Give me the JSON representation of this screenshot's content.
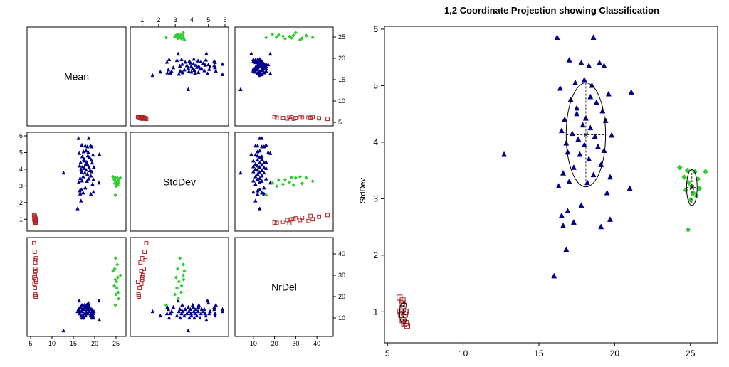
{
  "chart_data": [
    {
      "type": "scatter",
      "kind": "scatterplot-matrix",
      "variables": [
        "Mean",
        "StdDev",
        "NrDel"
      ],
      "ticks": {
        "StdDev": [
          "1",
          "2",
          "3",
          "4",
          "5",
          "6"
        ],
        "Mean": [
          "5",
          "10",
          "15",
          "20",
          "25"
        ],
        "NrDel": [
          "10",
          "20",
          "30",
          "40"
        ]
      },
      "ranges": {
        "Mean": [
          5.0,
          26.5
        ],
        "StdDev": [
          0.5,
          6.0
        ],
        "NrDel": [
          3,
          46
        ]
      },
      "colors": {
        "class1": "#b22222",
        "class2": "#00008b",
        "class3": "#32cd32"
      },
      "markers": {
        "class1": "open-square",
        "class2": "filled-triangle",
        "class3": "filled-diamond"
      },
      "points": {
        "class1": [
          [
            5.8,
            1.25,
            45
          ],
          [
            6.0,
            1.2,
            37
          ],
          [
            6.1,
            1.1,
            33
          ],
          [
            6.0,
            1.05,
            30
          ],
          [
            6.2,
            1.0,
            28
          ],
          [
            5.9,
            0.95,
            26
          ],
          [
            6.1,
            0.9,
            36
          ],
          [
            6.0,
            0.85,
            24
          ],
          [
            6.2,
            0.8,
            20
          ],
          [
            6.3,
            0.75,
            27
          ],
          [
            5.95,
            1.15,
            41
          ],
          [
            6.15,
            0.95,
            32
          ],
          [
            6.25,
            1.0,
            38
          ],
          [
            5.85,
            1.0,
            29
          ],
          [
            6.1,
            0.78,
            21
          ]
        ],
        "class2": [
          [
            16.2,
            5.85,
            14
          ],
          [
            18.6,
            5.85,
            13
          ],
          [
            17.0,
            5.45,
            16
          ],
          [
            17.8,
            5.4,
            12
          ],
          [
            18.3,
            5.35,
            15
          ],
          [
            19.0,
            5.4,
            11
          ],
          [
            19.3,
            5.35,
            14
          ],
          [
            16.4,
            4.95,
            18
          ],
          [
            17.4,
            5.05,
            12
          ],
          [
            18.0,
            5.1,
            13
          ],
          [
            18.5,
            5.0,
            17
          ],
          [
            19.6,
            4.85,
            11
          ],
          [
            21.1,
            4.88,
            9
          ],
          [
            17.1,
            4.75,
            14
          ],
          [
            18.8,
            4.7,
            13
          ],
          [
            19.2,
            4.55,
            12
          ],
          [
            17.5,
            4.5,
            10
          ],
          [
            16.7,
            4.4,
            15
          ],
          [
            18.1,
            4.42,
            16
          ],
          [
            19.4,
            4.38,
            13
          ],
          [
            17.9,
            4.3,
            11
          ],
          [
            18.4,
            4.25,
            14
          ],
          [
            16.5,
            4.2,
            12
          ],
          [
            17.2,
            4.15,
            10
          ],
          [
            18.7,
            4.1,
            15
          ],
          [
            19.8,
            4.12,
            13
          ],
          [
            17.6,
            4.05,
            16
          ],
          [
            16.8,
            3.98,
            11
          ],
          [
            18.0,
            3.95,
            12
          ],
          [
            18.9,
            3.92,
            14
          ],
          [
            19.3,
            3.85,
            10
          ],
          [
            16.9,
            3.82,
            13
          ],
          [
            17.7,
            3.78,
            15
          ],
          [
            12.7,
            3.78,
            4
          ],
          [
            18.3,
            3.7,
            12
          ],
          [
            19.1,
            3.6,
            14
          ],
          [
            17.3,
            3.55,
            11
          ],
          [
            16.6,
            3.45,
            13
          ],
          [
            18.6,
            3.42,
            16
          ],
          [
            19.7,
            3.38,
            12
          ],
          [
            17.0,
            3.3,
            10
          ],
          [
            18.2,
            3.28,
            14
          ],
          [
            16.3,
            3.22,
            13
          ],
          [
            21.0,
            3.18,
            18
          ],
          [
            19.5,
            3.1,
            11
          ],
          [
            17.8,
            2.88,
            15
          ],
          [
            16.9,
            2.78,
            13
          ],
          [
            16.5,
            2.7,
            12
          ],
          [
            19.7,
            2.63,
            10
          ],
          [
            17.3,
            2.58,
            14
          ],
          [
            19.1,
            2.5,
            12
          ],
          [
            16.6,
            2.52,
            15
          ],
          [
            16.8,
            2.1,
            11
          ],
          [
            16.0,
            1.63,
            13
          ],
          [
            18.4,
            4.8,
            12
          ],
          [
            17.5,
            4.6,
            14
          ]
        ],
        "class3": [
          [
            24.3,
            3.55,
            32
          ],
          [
            24.8,
            3.5,
            28
          ],
          [
            25.3,
            3.48,
            35
          ],
          [
            26.0,
            3.48,
            30
          ],
          [
            24.6,
            3.38,
            25
          ],
          [
            25.5,
            3.35,
            22
          ],
          [
            24.9,
            3.28,
            38
          ],
          [
            25.1,
            3.22,
            27
          ],
          [
            25.6,
            3.18,
            19
          ],
          [
            24.7,
            3.15,
            33
          ],
          [
            25.2,
            3.1,
            24
          ],
          [
            25.4,
            3.05,
            29
          ],
          [
            25.0,
            2.98,
            21
          ],
          [
            24.85,
            2.45,
            16
          ]
        ]
      }
    },
    {
      "type": "scatter",
      "title": "1,2 Coordinate Projection showing Classification",
      "xlabel": "",
      "ylabel": "StdDev",
      "xlim": [
        4.8,
        26.8
      ],
      "ylim": [
        0.45,
        6.05
      ],
      "xticks": [
        "5",
        "10",
        "15",
        "20",
        "25"
      ],
      "yticks": [
        "1",
        "2",
        "3",
        "4",
        "5",
        "6"
      ],
      "ellipses": [
        {
          "class": "class1",
          "cx": 6.05,
          "cy": 0.98,
          "rx": 0.25,
          "ry": 0.2
        },
        {
          "class": "class2",
          "cx": 18.1,
          "cy": 4.13,
          "rx": 1.3,
          "ry": 0.92
        },
        {
          "class": "class3",
          "cx": 25.1,
          "cy": 3.2,
          "rx": 0.35,
          "ry": 0.32
        }
      ],
      "means": [
        [
          6.05,
          0.98
        ],
        [
          18.1,
          4.13
        ],
        [
          25.1,
          3.2
        ]
      ]
    }
  ]
}
